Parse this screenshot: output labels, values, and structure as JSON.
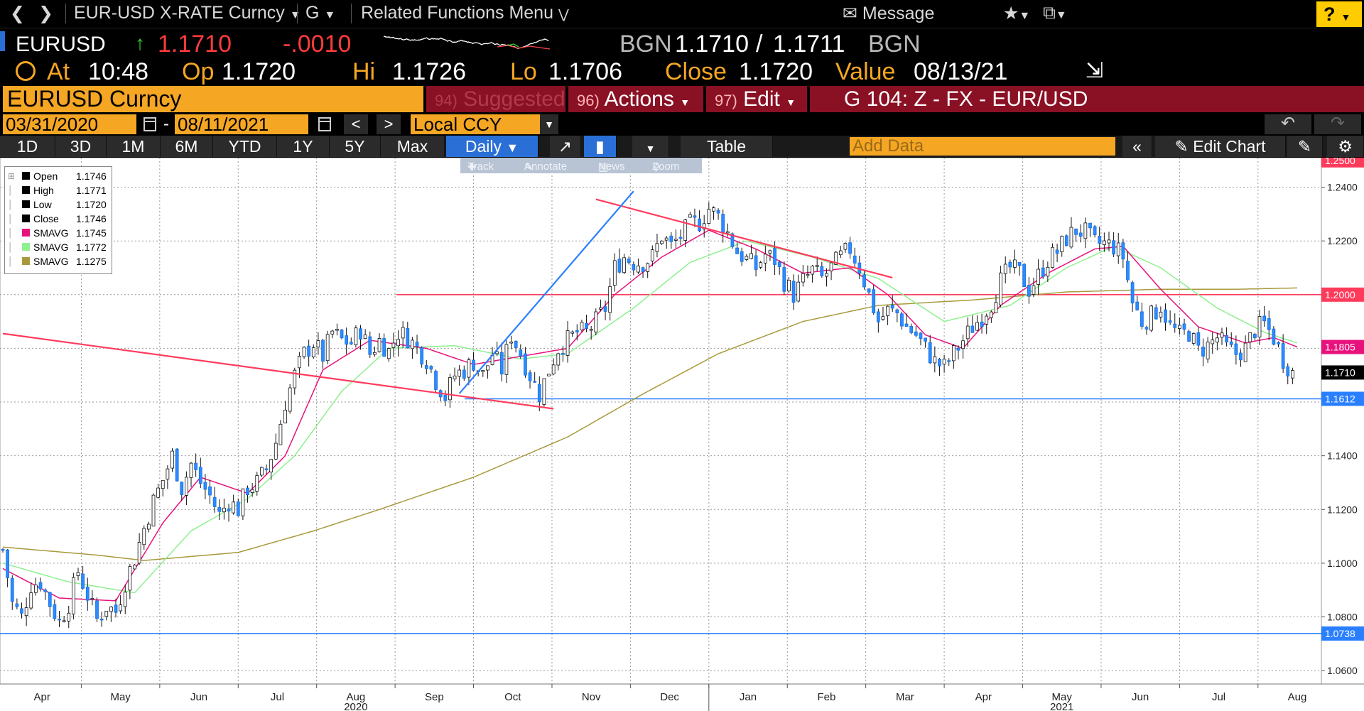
{
  "nav": {
    "title": "EUR-USD X-RATE Curncy",
    "func": "G",
    "related": "Related Functions Menu",
    "message": "Message",
    "help": "?"
  },
  "ticker": {
    "symbol": "EURUSD",
    "price": "1.1710",
    "change": "-.0010",
    "src1": "BGN",
    "bid": "1.1710",
    "slash": "/",
    "ask": "1.1711",
    "src2": "BGN"
  },
  "quote": {
    "at_label": "At",
    "at_value": "10:48",
    "op_label": "Op",
    "op_value": "1.1720",
    "hi_label": "Hi",
    "hi_value": "1.1726",
    "lo_label": "Lo",
    "lo_value": "1.1706",
    "close_label": "Close",
    "close_value": "1.1720",
    "value_label": "Value",
    "value_date": "08/13/21"
  },
  "security_bar": {
    "name": "EURUSD Curncy",
    "suggest_num": "94)",
    "suggest_label": "Suggested Charts",
    "actions_num": "96)",
    "actions_label": "Actions",
    "edit_num": "97)",
    "edit_label": "Edit",
    "chart_id": "G 104: Z - FX - EUR/USD"
  },
  "date_range": {
    "start": "03/31/2020",
    "dash": "-",
    "end": "08/11/2021",
    "prev": "<",
    "next": ">",
    "currency": "Local CCY"
  },
  "toolbar": {
    "periods": [
      "1D",
      "3D",
      "1M",
      "6M",
      "YTD",
      "1Y",
      "5Y",
      "Max"
    ],
    "frequency": "Daily",
    "table": "Table",
    "add_data_placeholder": "Add Data",
    "edit_chart": "Edit Chart"
  },
  "chart_tools": {
    "track": "Track",
    "annotate": "Annotate",
    "news": "News",
    "zoom": "Zoom"
  },
  "legend": [
    {
      "name": "Open",
      "value": "1.1746",
      "color": "#000000"
    },
    {
      "name": "High",
      "value": "1.1771",
      "color": "#000000"
    },
    {
      "name": "Low",
      "value": "1.1720",
      "color": "#000000"
    },
    {
      "name": "Close",
      "value": "1.1746",
      "color": "#000000"
    },
    {
      "name": "SMAVG",
      "value": "1.1745",
      "color": "#e8127c"
    },
    {
      "name": "SMAVG",
      "value": "1.1772",
      "color": "#8ff08f"
    },
    {
      "name": "SMAVG",
      "value": "1.1275",
      "color": "#a89a3c"
    }
  ],
  "chart_data": {
    "type": "candlestick",
    "ylim": [
      1.055,
      1.251
    ],
    "yticks": [
      1.06,
      1.08,
      1.1,
      1.12,
      1.14,
      1.16,
      1.18,
      1.2,
      1.22,
      1.24
    ],
    "months": [
      "Apr",
      "May",
      "Jun",
      "Jul",
      "Aug",
      "Sep",
      "Oct",
      "Nov",
      "Dec",
      "Jan",
      "Feb",
      "Mar",
      "Apr",
      "May",
      "Jun",
      "Jul",
      "Aug"
    ],
    "years": [
      "2020",
      "2021"
    ],
    "price_tags": [
      {
        "value": 1.25,
        "label": "1.2500",
        "color": "#ff3b5c"
      },
      {
        "value": 1.2,
        "label": "1.2000",
        "color": "#ff3b5c"
      },
      {
        "value": 1.1805,
        "label": "1.1805",
        "color": "#e8127c"
      },
      {
        "value": 1.171,
        "label": "1.1710",
        "color": "#000000"
      },
      {
        "value": 1.1612,
        "label": "1.1612",
        "color": "#2a7fff"
      },
      {
        "value": 1.0738,
        "label": "1.0738",
        "color": "#2a7fff"
      }
    ],
    "close_path": [
      [
        0,
        1.105
      ],
      [
        2,
        1.085
      ],
      [
        4,
        1.08
      ],
      [
        6,
        1.092
      ],
      [
        8,
        1.093
      ],
      [
        10,
        1.085
      ],
      [
        12,
        1.078
      ],
      [
        14,
        1.085
      ],
      [
        16,
        1.097
      ],
      [
        18,
        1.088
      ],
      [
        20,
        1.079
      ],
      [
        22,
        1.084
      ],
      [
        24,
        1.082
      ],
      [
        26,
        1.093
      ],
      [
        28,
        1.102
      ],
      [
        30,
        1.113
      ],
      [
        32,
        1.123
      ],
      [
        34,
        1.131
      ],
      [
        36,
        1.14
      ],
      [
        38,
        1.128
      ],
      [
        40,
        1.137
      ],
      [
        42,
        1.13
      ],
      [
        44,
        1.125
      ],
      [
        46,
        1.118
      ],
      [
        48,
        1.123
      ],
      [
        50,
        1.12
      ],
      [
        52,
        1.128
      ],
      [
        54,
        1.13
      ],
      [
        56,
        1.135
      ],
      [
        58,
        1.145
      ],
      [
        60,
        1.16
      ],
      [
        62,
        1.17
      ],
      [
        64,
        1.178
      ],
      [
        66,
        1.182
      ],
      [
        68,
        1.177
      ],
      [
        70,
        1.186
      ],
      [
        72,
        1.183
      ],
      [
        74,
        1.182
      ],
      [
        76,
        1.187
      ],
      [
        78,
        1.178
      ],
      [
        80,
        1.183
      ],
      [
        82,
        1.179
      ],
      [
        84,
        1.186
      ],
      [
        86,
        1.184
      ],
      [
        88,
        1.18
      ],
      [
        90,
        1.176
      ],
      [
        92,
        1.168
      ],
      [
        94,
        1.162
      ],
      [
        96,
        1.17
      ],
      [
        98,
        1.172
      ],
      [
        100,
        1.175
      ],
      [
        102,
        1.17
      ],
      [
        104,
        1.178
      ],
      [
        106,
        1.172
      ],
      [
        108,
        1.185
      ],
      [
        110,
        1.178
      ],
      [
        112,
        1.17
      ],
      [
        114,
        1.163
      ],
      [
        116,
        1.172
      ],
      [
        118,
        1.18
      ],
      [
        120,
        1.183
      ],
      [
        122,
        1.186
      ],
      [
        124,
        1.186
      ],
      [
        126,
        1.19
      ],
      [
        128,
        1.195
      ],
      [
        130,
        1.21
      ],
      [
        132,
        1.214
      ],
      [
        134,
        1.212
      ],
      [
        136,
        1.212
      ],
      [
        138,
        1.214
      ],
      [
        140,
        1.222
      ],
      [
        142,
        1.218
      ],
      [
        144,
        1.222
      ],
      [
        146,
        1.226
      ],
      [
        148,
        1.227
      ],
      [
        150,
        1.232
      ],
      [
        152,
        1.229
      ],
      [
        154,
        1.223
      ],
      [
        156,
        1.216
      ],
      [
        158,
        1.213
      ],
      [
        160,
        1.21
      ],
      [
        162,
        1.215
      ],
      [
        164,
        1.213
      ],
      [
        166,
        1.205
      ],
      [
        168,
        1.2
      ],
      [
        170,
        1.205
      ],
      [
        172,
        1.209
      ],
      [
        174,
        1.206
      ],
      [
        176,
        1.21
      ],
      [
        178,
        1.214
      ],
      [
        180,
        1.217
      ],
      [
        182,
        1.21
      ],
      [
        184,
        1.2
      ],
      [
        186,
        1.19
      ],
      [
        188,
        1.194
      ],
      [
        190,
        1.193
      ],
      [
        192,
        1.188
      ],
      [
        194,
        1.185
      ],
      [
        196,
        1.18
      ],
      [
        198,
        1.175
      ],
      [
        200,
        1.173
      ],
      [
        202,
        1.178
      ],
      [
        204,
        1.183
      ],
      [
        206,
        1.188
      ],
      [
        208,
        1.192
      ],
      [
        210,
        1.197
      ],
      [
        212,
        1.205
      ],
      [
        214,
        1.21
      ],
      [
        216,
        1.208
      ],
      [
        218,
        1.202
      ],
      [
        220,
        1.207
      ],
      [
        222,
        1.213
      ],
      [
        224,
        1.216
      ],
      [
        226,
        1.221
      ],
      [
        228,
        1.224
      ],
      [
        230,
        1.223
      ],
      [
        232,
        1.219
      ],
      [
        234,
        1.219
      ],
      [
        236,
        1.218
      ],
      [
        238,
        1.214
      ],
      [
        240,
        1.197
      ],
      [
        242,
        1.19
      ],
      [
        244,
        1.192
      ],
      [
        246,
        1.196
      ],
      [
        248,
        1.188
      ],
      [
        250,
        1.185
      ],
      [
        252,
        1.186
      ],
      [
        254,
        1.179
      ],
      [
        256,
        1.181
      ],
      [
        258,
        1.184
      ],
      [
        260,
        1.18
      ],
      [
        262,
        1.178
      ],
      [
        264,
        1.18
      ],
      [
        266,
        1.187
      ],
      [
        268,
        1.189
      ],
      [
        270,
        1.184
      ],
      [
        272,
        1.176
      ],
      [
        274,
        1.171
      ]
    ],
    "sma_fast": [
      [
        0,
        1.098
      ],
      [
        12,
        1.087
      ],
      [
        24,
        1.086
      ],
      [
        34,
        1.115
      ],
      [
        42,
        1.132
      ],
      [
        52,
        1.126
      ],
      [
        60,
        1.14
      ],
      [
        68,
        1.172
      ],
      [
        78,
        1.183
      ],
      [
        90,
        1.18
      ],
      [
        100,
        1.174
      ],
      [
        110,
        1.177
      ],
      [
        120,
        1.18
      ],
      [
        130,
        1.2
      ],
      [
        140,
        1.214
      ],
      [
        150,
        1.224
      ],
      [
        160,
        1.217
      ],
      [
        170,
        1.208
      ],
      [
        180,
        1.21
      ],
      [
        188,
        1.2
      ],
      [
        196,
        1.185
      ],
      [
        204,
        1.18
      ],
      [
        212,
        1.196
      ],
      [
        222,
        1.208
      ],
      [
        232,
        1.217
      ],
      [
        238,
        1.218
      ],
      [
        246,
        1.202
      ],
      [
        254,
        1.188
      ],
      [
        264,
        1.182
      ],
      [
        270,
        1.184
      ],
      [
        275,
        1.1805
      ]
    ],
    "sma_mid": [
      [
        0,
        1.1
      ],
      [
        14,
        1.093
      ],
      [
        28,
        1.089
      ],
      [
        40,
        1.112
      ],
      [
        52,
        1.124
      ],
      [
        62,
        1.14
      ],
      [
        72,
        1.164
      ],
      [
        82,
        1.18
      ],
      [
        96,
        1.181
      ],
      [
        110,
        1.176
      ],
      [
        120,
        1.178
      ],
      [
        134,
        1.195
      ],
      [
        146,
        1.212
      ],
      [
        158,
        1.22
      ],
      [
        172,
        1.214
      ],
      [
        186,
        1.206
      ],
      [
        200,
        1.19
      ],
      [
        214,
        1.196
      ],
      [
        226,
        1.21
      ],
      [
        236,
        1.218
      ],
      [
        246,
        1.21
      ],
      [
        258,
        1.195
      ],
      [
        268,
        1.186
      ],
      [
        275,
        1.182
      ]
    ],
    "sma_slow": [
      [
        0,
        1.106
      ],
      [
        20,
        1.103
      ],
      [
        30,
        1.101
      ],
      [
        50,
        1.104
      ],
      [
        66,
        1.112
      ],
      [
        80,
        1.12
      ],
      [
        100,
        1.132
      ],
      [
        120,
        1.147
      ],
      [
        136,
        1.163
      ],
      [
        152,
        1.178
      ],
      [
        170,
        1.19
      ],
      [
        186,
        1.196
      ],
      [
        206,
        1.198
      ],
      [
        226,
        1.201
      ],
      [
        246,
        1.202
      ],
      [
        262,
        1.202
      ],
      [
        275,
        1.2025
      ]
    ]
  }
}
